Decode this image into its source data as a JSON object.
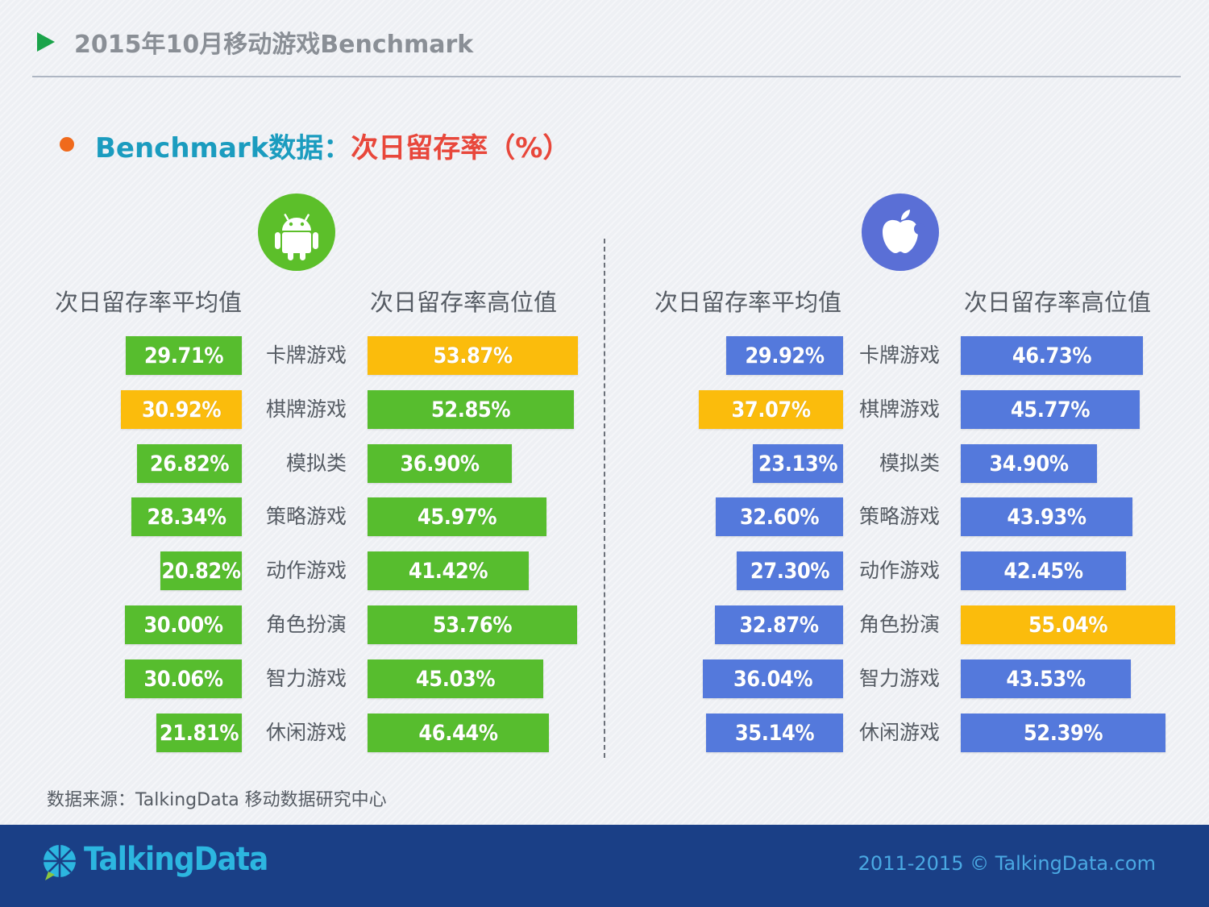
{
  "header": {
    "title": "2015年10月移动游戏Benchmark"
  },
  "subtitle": {
    "part1": "Benchmark数据：",
    "part2": "次日留存率（%）"
  },
  "panels": {
    "android": {
      "icon": "android-icon",
      "left_header": "次日留存率平均值",
      "right_header": "次日留存率高位值"
    },
    "ios": {
      "icon": "apple-icon",
      "left_header": "次日留存率平均值",
      "right_header": "次日留存率高位值"
    }
  },
  "colors": {
    "android_bar": "#57bd2e",
    "ios_bar": "#5479dc",
    "highlight_bar": "#fbbc0c",
    "footer_bg": "#1a3f86"
  },
  "chart_data": [
    {
      "type": "bar",
      "platform": "Android",
      "categories": [
        "卡牌游戏",
        "棋牌游戏",
        "模拟类",
        "策略游戏",
        "动作游戏",
        "角色扮演",
        "智力游戏",
        "休闲游戏"
      ],
      "series": [
        {
          "name": "次日留存率平均值",
          "values": [
            29.71,
            30.92,
            26.82,
            28.34,
            20.82,
            30.0,
            30.06,
            21.81
          ],
          "labels": [
            "29.71%",
            "30.92%",
            "26.82%",
            "28.34%",
            "20.82%",
            "30.00%",
            "30.06%",
            "21.81%"
          ],
          "highlight_index": 1
        },
        {
          "name": "次日留存率高位值",
          "values": [
            53.87,
            52.85,
            36.9,
            45.97,
            41.42,
            53.76,
            45.03,
            46.44
          ],
          "labels": [
            "53.87%",
            "52.85%",
            "36.90%",
            "45.97%",
            "41.42%",
            "53.76%",
            "45.03%",
            "46.44%"
          ],
          "highlight_index": 0
        }
      ]
    },
    {
      "type": "bar",
      "platform": "iOS",
      "categories": [
        "卡牌游戏",
        "棋牌游戏",
        "模拟类",
        "策略游戏",
        "动作游戏",
        "角色扮演",
        "智力游戏",
        "休闲游戏"
      ],
      "series": [
        {
          "name": "次日留存率平均值",
          "values": [
            29.92,
            37.07,
            23.13,
            32.6,
            27.3,
            32.87,
            36.04,
            35.14
          ],
          "labels": [
            "29.92%",
            "37.07%",
            "23.13%",
            "32.60%",
            "27.30%",
            "32.87%",
            "36.04%",
            "35.14%"
          ],
          "highlight_index": 1
        },
        {
          "name": "次日留存率高位值",
          "values": [
            46.73,
            45.77,
            34.9,
            43.93,
            42.45,
            55.04,
            43.53,
            52.39
          ],
          "labels": [
            "46.73%",
            "45.77%",
            "34.90%",
            "43.93%",
            "42.45%",
            "55.04%",
            "43.53%",
            "52.39%"
          ],
          "highlight_index": 5
        }
      ]
    }
  ],
  "source": "数据来源：TalkingData 移动数据研究中心",
  "footer": {
    "brand": "TalkingData",
    "logo_icon": "talkingdata-logo-icon",
    "copyright": "2011-2015 © TalkingData.com"
  }
}
